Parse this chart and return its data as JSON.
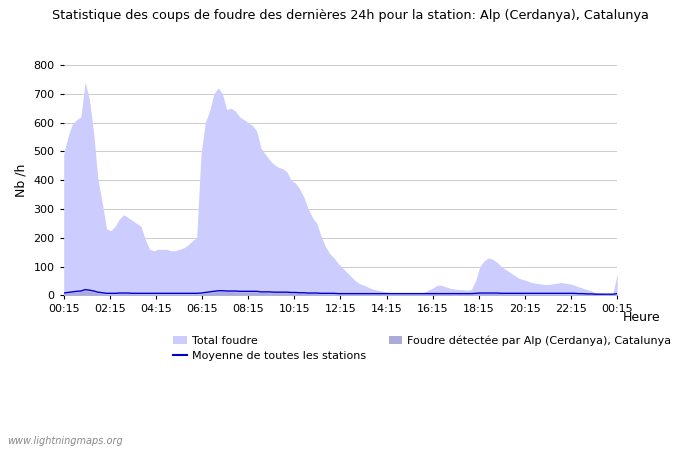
{
  "title": "Statistique des coups de foudre des dernières 24h pour la station: Alp (Cerdanya), Catalunya",
  "xlabel": "Heure",
  "ylabel": "Nb /h",
  "ylim": [
    0,
    800
  ],
  "yticks": [
    0,
    100,
    200,
    300,
    400,
    500,
    600,
    700,
    800
  ],
  "background_color": "#ffffff",
  "grid_color": "#cccccc",
  "fill_color_light": "#ccccff",
  "fill_color_dark": "#aaaadd",
  "line_color": "#0000cc",
  "watermark": "www.lightningmaps.org",
  "legend_items": [
    {
      "label": "Total foudre",
      "color": "#ccccff",
      "type": "fill"
    },
    {
      "label": "Moyenne de toutes les stations",
      "color": "#0000cc",
      "type": "line"
    },
    {
      "label": "Foudre détectée par Alp (Cerdanya), Catalunya",
      "color": "#aaaadd",
      "type": "fill"
    }
  ],
  "x_labels": [
    "00:15",
    "02:15",
    "04:15",
    "06:15",
    "08:15",
    "10:15",
    "12:15",
    "14:15",
    "16:15",
    "18:15",
    "20:15",
    "22:15",
    "00:15"
  ],
  "total_foudre": [
    490,
    550,
    595,
    610,
    620,
    740,
    680,
    560,
    400,
    320,
    230,
    225,
    240,
    265,
    280,
    270,
    260,
    250,
    240,
    195,
    160,
    155,
    160,
    160,
    160,
    155,
    155,
    160,
    165,
    175,
    190,
    200,
    490,
    600,
    640,
    700,
    720,
    700,
    645,
    650,
    640,
    620,
    610,
    600,
    590,
    570,
    510,
    490,
    470,
    455,
    445,
    440,
    430,
    400,
    390,
    370,
    340,
    300,
    270,
    250,
    205,
    170,
    145,
    130,
    110,
    95,
    80,
    65,
    50,
    40,
    35,
    28,
    22,
    18,
    15,
    12,
    10,
    8,
    8,
    7,
    7,
    7,
    7,
    8,
    10,
    18,
    25,
    35,
    35,
    30,
    25,
    22,
    20,
    20,
    18,
    20,
    50,
    100,
    120,
    130,
    125,
    115,
    100,
    90,
    80,
    70,
    60,
    55,
    50,
    45,
    42,
    40,
    38,
    38,
    40,
    42,
    45,
    42,
    40,
    35,
    30,
    25,
    20,
    15,
    10,
    8,
    5,
    5,
    5,
    75
  ],
  "local_foudre": [
    5,
    8,
    10,
    12,
    13,
    18,
    15,
    12,
    8,
    6,
    4,
    4,
    4,
    5,
    5,
    5,
    4,
    4,
    4,
    4,
    4,
    4,
    4,
    4,
    4,
    4,
    4,
    4,
    4,
    4,
    4,
    4,
    5,
    8,
    10,
    12,
    14,
    14,
    13,
    13,
    12,
    12,
    12,
    12,
    12,
    11,
    10,
    10,
    9,
    9,
    9,
    9,
    9,
    8,
    8,
    8,
    7,
    7,
    6,
    6,
    5,
    5,
    5,
    5,
    4,
    4,
    4,
    4,
    4,
    4,
    4,
    4,
    4,
    4,
    4,
    4,
    4,
    4,
    4,
    4,
    4,
    4,
    4,
    4,
    4,
    4,
    4,
    4,
    4,
    4,
    4,
    4,
    4,
    4,
    4,
    4,
    5,
    6,
    6,
    6,
    6,
    6,
    5,
    5,
    5,
    5,
    5,
    5,
    4,
    4,
    4,
    4,
    4,
    4,
    4,
    4,
    4,
    4,
    4,
    4,
    4,
    4,
    4,
    4,
    4,
    4,
    4,
    4,
    4,
    5
  ],
  "moyenne": [
    8,
    10,
    12,
    14,
    15,
    20,
    18,
    15,
    11,
    9,
    7,
    7,
    7,
    8,
    8,
    8,
    7,
    7,
    7,
    7,
    7,
    7,
    7,
    7,
    7,
    7,
    7,
    7,
    7,
    7,
    7,
    7,
    8,
    10,
    12,
    14,
    16,
    16,
    15,
    15,
    15,
    14,
    14,
    14,
    14,
    14,
    12,
    12,
    12,
    11,
    11,
    11,
    11,
    10,
    10,
    9,
    9,
    8,
    8,
    8,
    7,
    7,
    7,
    7,
    6,
    6,
    6,
    6,
    6,
    6,
    6,
    6,
    6,
    6,
    6,
    6,
    6,
    6,
    6,
    6,
    6,
    6,
    6,
    6,
    6,
    6,
    6,
    6,
    6,
    6,
    6,
    6,
    6,
    6,
    6,
    6,
    7,
    8,
    8,
    8,
    8,
    8,
    7,
    7,
    7,
    7,
    7,
    7,
    7,
    7,
    7,
    7,
    7,
    7,
    7,
    7,
    7,
    7,
    7,
    7,
    6,
    6,
    5,
    5,
    4,
    4,
    4,
    4,
    4,
    6
  ]
}
